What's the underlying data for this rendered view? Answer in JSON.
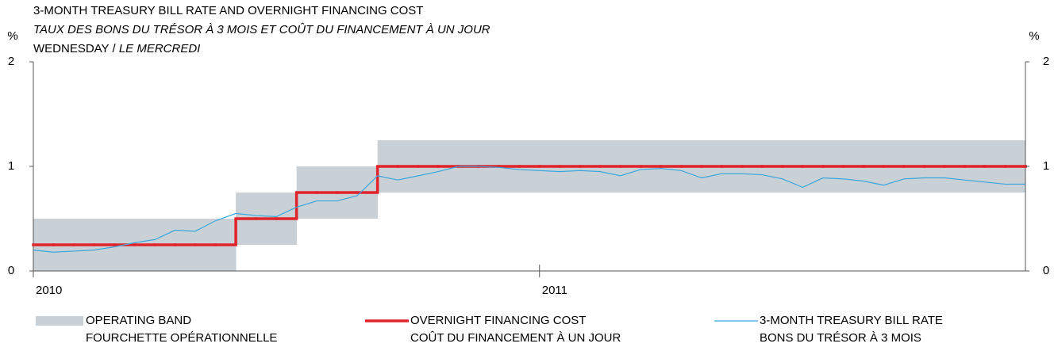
{
  "chart_data": {
    "type": "line",
    "title": "3-MONTH TREASURY BILL RATE AND OVERNIGHT FINANCING COST",
    "subtitle": "TAUX DES BONS DU TRÉSOR À 3 MOIS ET COÛT DU FINANCEMENT À UN JOUR",
    "note": "WEDNESDAY /",
    "note_fr": "LE MERCREDI",
    "y_unit": "%",
    "y2_unit": "%",
    "step": true,
    "x": [
      2010.0,
      2010.04,
      2010.08,
      2010.12,
      2010.16,
      2010.2,
      2010.24,
      2010.28,
      2010.32,
      2010.36,
      2010.4,
      2010.44,
      2010.48,
      2010.52,
      2010.56,
      2010.6,
      2010.64,
      2010.68,
      2010.72,
      2010.76,
      2010.8,
      2010.84,
      2010.88,
      2010.92,
      2010.96,
      2011.0,
      2011.04,
      2011.08,
      2011.12,
      2011.16,
      2011.2,
      2011.24,
      2011.28,
      2011.32,
      2011.36,
      2011.4,
      2011.44,
      2011.48,
      2011.52,
      2011.56,
      2011.6,
      2011.64,
      2011.68,
      2011.72,
      2011.76,
      2011.8,
      2011.84,
      2011.88,
      2011.92,
      2011.96
    ],
    "series": [
      {
        "name": "OPERATING BAND",
        "name_fr": "FOURCHETTE OPÉRATIONNELLE",
        "color": "#c9d1d7",
        "values": [
          0,
          0,
          0,
          0,
          0,
          0,
          0,
          0,
          0,
          0,
          0.25,
          0.25,
          0.25,
          0.5,
          0.5,
          0.5,
          0.5,
          0.75,
          0.75,
          0.75,
          0.75,
          0.75,
          0.75,
          0.75,
          0.75,
          0.75,
          0.75,
          0.75,
          0.75,
          0.75,
          0.75,
          0.75,
          0.75,
          0.75,
          0.75,
          0.75,
          0.75,
          0.75,
          0.75,
          0.75,
          0.75,
          0.75,
          0.75,
          0.75,
          0.75,
          0.75,
          0.75,
          0.75,
          0.75,
          0.75
        ],
        "upper": [
          0.5,
          0.5,
          0.5,
          0.5,
          0.5,
          0.5,
          0.5,
          0.5,
          0.5,
          0.5,
          0.75,
          0.75,
          0.75,
          1,
          1,
          1,
          1,
          1.25,
          1.25,
          1.25,
          1.25,
          1.25,
          1.25,
          1.25,
          1.25,
          1.25,
          1.25,
          1.25,
          1.25,
          1.25,
          1.25,
          1.25,
          1.25,
          1.25,
          1.25,
          1.25,
          1.25,
          1.25,
          1.25,
          1.25,
          1.25,
          1.25,
          1.25,
          1.25,
          1.25,
          1.25,
          1.25,
          1.25,
          1.25,
          1.25
        ]
      },
      {
        "name": "OVERNIGHT FINANCING COST",
        "name_fr": "COÛT DU FINANCEMENT À UN JOUR",
        "color": "#e0242a",
        "values": [
          0.25,
          0.25,
          0.25,
          0.25,
          0.25,
          0.25,
          0.25,
          0.25,
          0.25,
          0.25,
          0.5,
          0.5,
          0.5,
          0.75,
          0.75,
          0.75,
          0.75,
          1,
          1,
          1,
          1,
          1,
          1,
          1,
          1,
          1,
          1,
          1,
          1,
          1,
          1,
          1,
          1,
          1,
          1,
          1,
          1,
          1,
          1,
          1,
          1,
          1,
          1,
          1,
          1,
          1,
          1,
          1,
          1,
          1
        ]
      },
      {
        "name": "3-MONTH TREASURY BILL RATE",
        "name_fr": "BONS DU TRÉSOR À 3 MOIS",
        "color": "#3aa6dd",
        "values": [
          0.2,
          0.18,
          0.19,
          0.2,
          0.23,
          0.27,
          0.3,
          0.39,
          0.38,
          0.48,
          0.55,
          0.53,
          0.52,
          0.61,
          0.67,
          0.67,
          0.72,
          0.91,
          0.87,
          0.91,
          0.95,
          1.0,
          1.0,
          0.99,
          0.97,
          0.96,
          0.95,
          0.96,
          0.95,
          0.91,
          0.97,
          0.98,
          0.96,
          0.89,
          0.93,
          0.93,
          0.92,
          0.88,
          0.8,
          0.89,
          0.88,
          0.86,
          0.82,
          0.88,
          0.89,
          0.89,
          0.87,
          0.85,
          0.83,
          0.83
        ]
      }
    ],
    "xlim": [
      2010,
      2011.96
    ],
    "xticks": [
      2010,
      2011
    ],
    "ylim": [
      0,
      2
    ],
    "yticks": [
      0,
      1,
      2
    ],
    "y2lim": [
      0,
      2
    ],
    "y2ticks": [
      0,
      1,
      2
    ]
  }
}
